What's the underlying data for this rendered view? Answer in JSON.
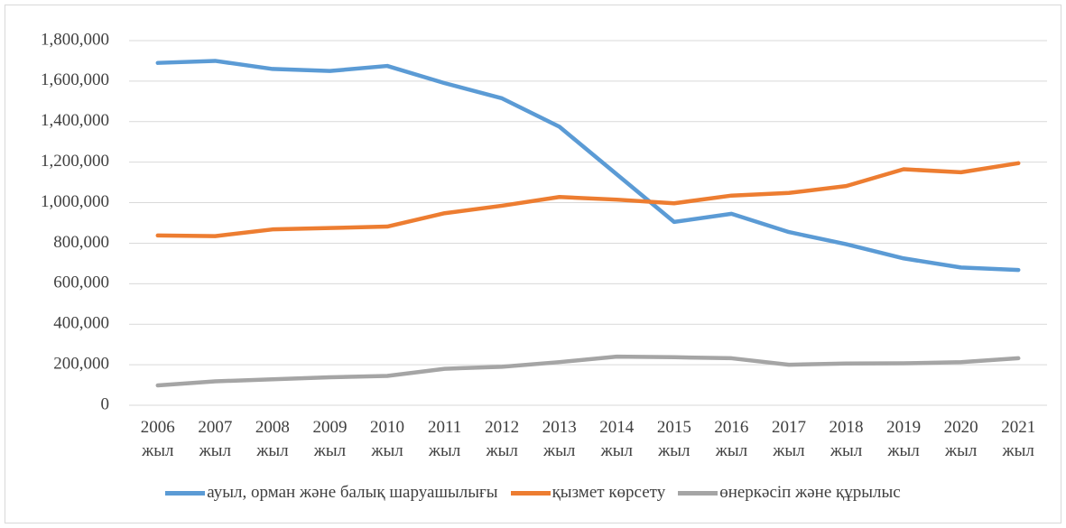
{
  "chart_data": {
    "type": "line",
    "categories": [
      "2006 жыл",
      "2007 жыл",
      "2008 жыл",
      "2009 жыл",
      "2010 жыл",
      "2011 жыл",
      "2012 жыл",
      "2013 жыл",
      "2014 жыл",
      "2015 жыл",
      "2016 жыл",
      "2017 жыл",
      "2018 жыл",
      "2019 жыл",
      "2020 жыл",
      "2021 жыл"
    ],
    "series": [
      {
        "name": "ауыл, орман және балық шаруашылығы",
        "color": "#5b9bd5",
        "values": [
          1690000,
          1700000,
          1660000,
          1650000,
          1675000,
          1590000,
          1515000,
          1375000,
          1140000,
          905000,
          945000,
          855000,
          795000,
          725000,
          680000,
          668000
        ]
      },
      {
        "name": "қызмет көрсету",
        "color": "#ed7d31",
        "values": [
          838000,
          835000,
          868000,
          875000,
          882000,
          948000,
          985000,
          1028000,
          1015000,
          997000,
          1035000,
          1048000,
          1082000,
          1165000,
          1150000,
          1195000
        ]
      },
      {
        "name": "өнеркәсіп және құрылыс",
        "color": "#a5a5a5",
        "values": [
          98000,
          118000,
          128000,
          138000,
          145000,
          180000,
          190000,
          213000,
          240000,
          237000,
          232000,
          200000,
          206000,
          207000,
          213000,
          232000
        ]
      }
    ],
    "ylim": [
      0,
      1800000
    ],
    "yticks": [
      0,
      {
        "value": 200000,
        "label": "200,000"
      },
      {
        "value": 400000,
        "label": "400,000"
      },
      {
        "value": 600000,
        "label": "600,000"
      },
      {
        "value": 800000,
        "label": "800,000"
      },
      {
        "value": 1000000,
        "label": "1,000,000"
      },
      {
        "value": 1200000,
        "label": "1,200,000"
      },
      {
        "value": 1400000,
        "label": "1,400,000"
      },
      {
        "value": 1600000,
        "label": "1,600,000"
      },
      {
        "value": 1800000,
        "label": "1,800,000"
      }
    ],
    "grid": true,
    "legend": "bottom"
  }
}
